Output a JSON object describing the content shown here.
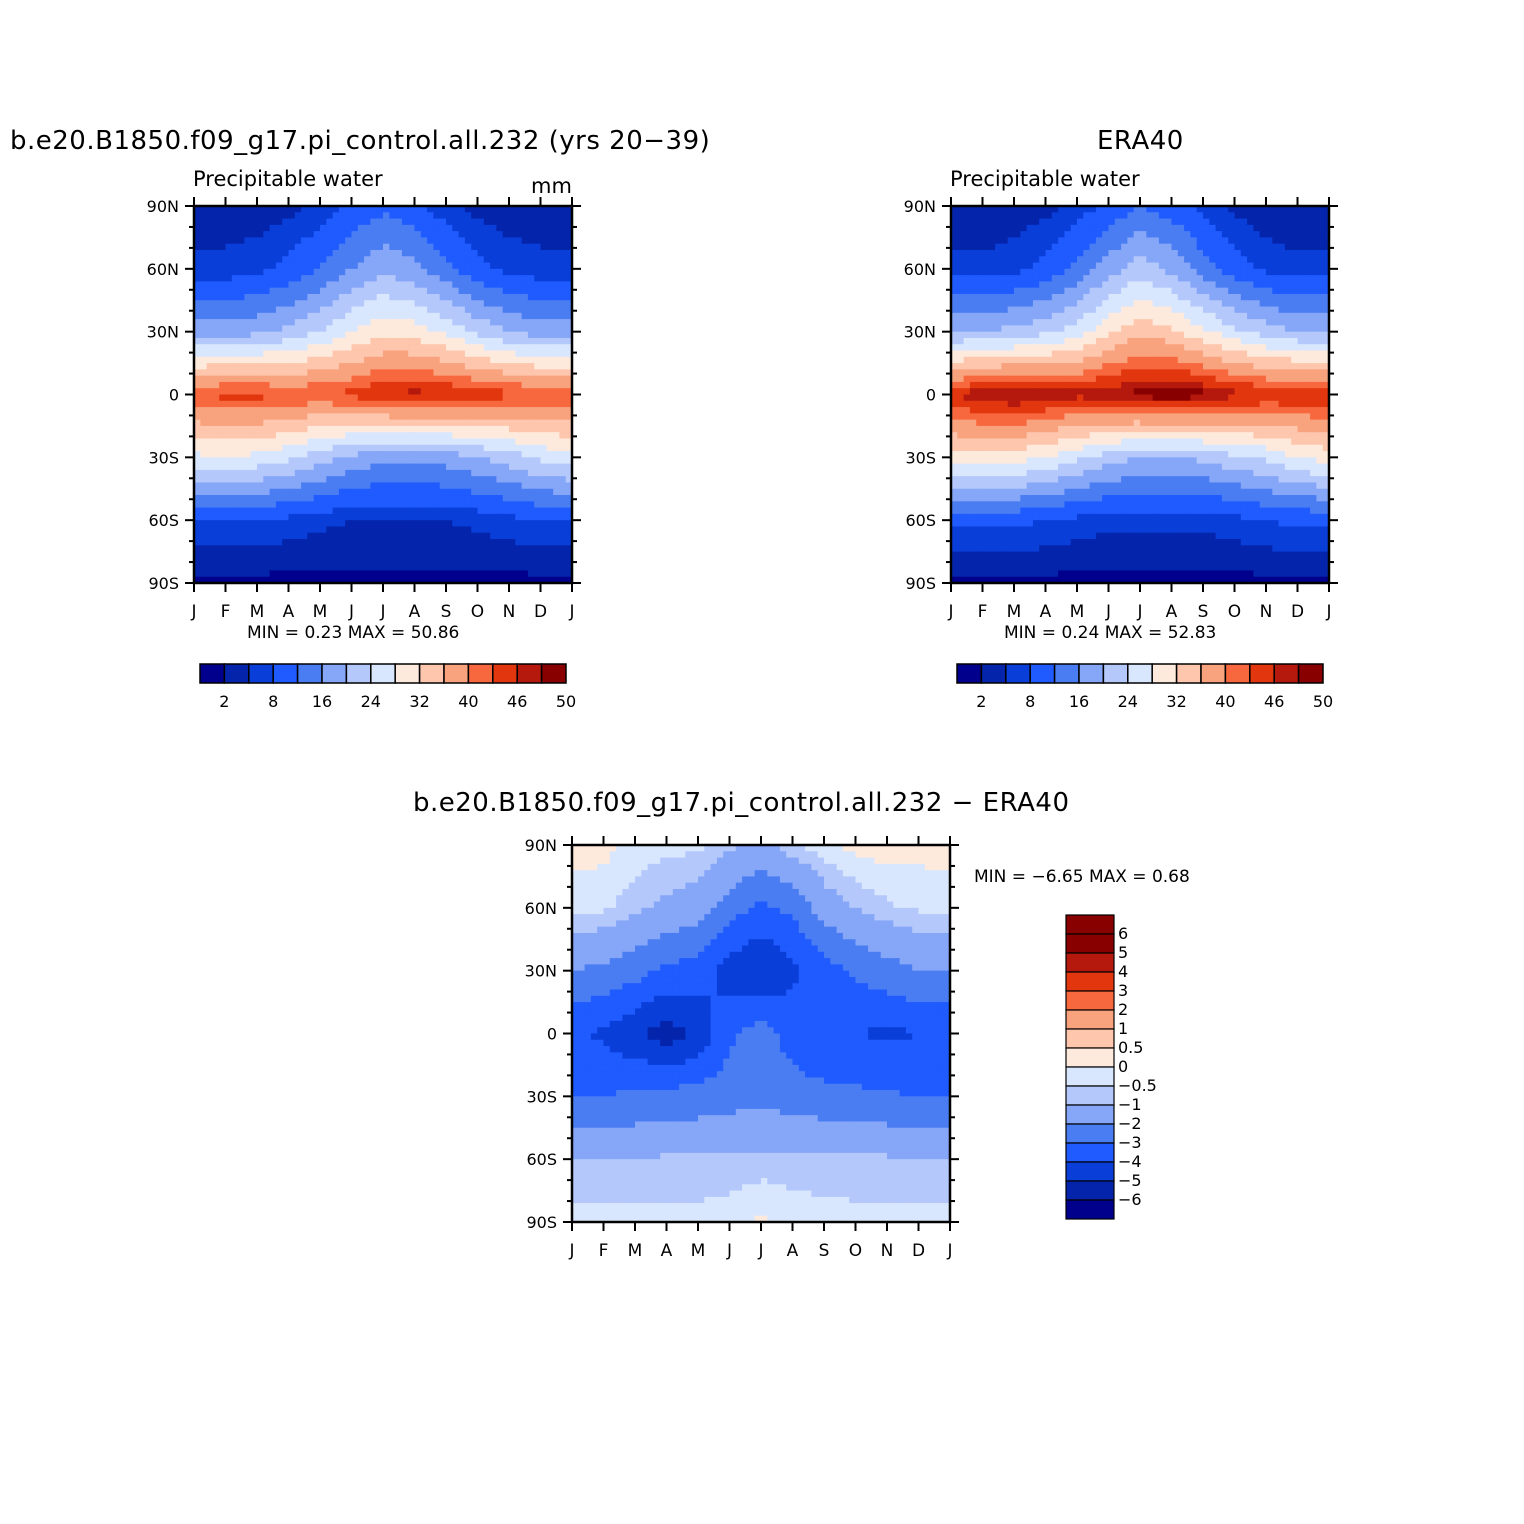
{
  "panels": [
    {
      "id": "model",
      "title": "b.e20.B1850.f09_g17.pi_control.all.232 (yrs 20−39)",
      "left_string": "Precipitable water",
      "right_string": "mm",
      "stats": "MIN =    0.23  MAX =    50.86",
      "colorbar_labels": [
        "2",
        "8",
        "16",
        "24",
        "32",
        "40",
        "46",
        "50"
      ]
    },
    {
      "id": "era40",
      "title": "ERA40",
      "left_string": "Precipitable water",
      "right_string": "",
      "stats": "MIN =    0.24  MAX =    52.83",
      "colorbar_labels": [
        "2",
        "8",
        "16",
        "24",
        "32",
        "40",
        "46",
        "50"
      ]
    },
    {
      "id": "diff",
      "title": "b.e20.B1850.f09_g17.pi_control.all.232 − ERA40",
      "left_string": "",
      "right_string": "",
      "stats": "MIN =   −6.65  MAX =     0.68",
      "colorbar_labels": [
        "6",
        "5",
        "4",
        "3",
        "2",
        "1",
        "0.5",
        "0",
        "−0.5",
        "−1",
        "−2",
        "−3",
        "−4",
        "−5",
        "−6"
      ]
    }
  ],
  "axes": {
    "lat_labels": [
      "90N",
      "60N",
      "30N",
      "0",
      "30S",
      "60S",
      "90S"
    ],
    "month_labels": [
      "J",
      "F",
      "M",
      "A",
      "M",
      "J",
      "J",
      "A",
      "S",
      "O",
      "N",
      "D",
      "J"
    ]
  },
  "colors": {
    "pw_levels": [
      "#00008c",
      "#0425ab",
      "#0a3ed9",
      "#1f5bff",
      "#4a7df2",
      "#86a6f8",
      "#b4c8fb",
      "#d9e7fe",
      "#feeadc",
      "#fdc6ad",
      "#f9a27e",
      "#f7683f",
      "#e2370e",
      "#b5190e",
      "#880000"
    ],
    "diff_levels": [
      "#00008c",
      "#0425ab",
      "#0a3ed9",
      "#1f5bff",
      "#4a7df2",
      "#86a6f8",
      "#b4c8fb",
      "#d9e7fe",
      "#feeadc",
      "#fdc6ad",
      "#f9a27e",
      "#f7683f",
      "#e2370e",
      "#b5190e",
      "#880000"
    ]
  },
  "chart_data": [
    {
      "type": "heatmap",
      "title": "b.e20.B1850.f09_g17.pi_control.all.232 (yrs 20−39)",
      "subtitle": "Precipitable water",
      "units": "mm",
      "x_axis": "month (J..J)",
      "y_axis": "latitude (90S..90N)",
      "contour_levels": [
        2,
        5,
        8,
        12,
        16,
        20,
        24,
        28,
        32,
        36,
        40,
        43,
        46,
        48,
        50
      ],
      "min": 0.23,
      "max": 50.86,
      "x": [
        "J",
        "F",
        "M",
        "A",
        "M",
        "J",
        "J",
        "A",
        "S",
        "O",
        "N",
        "D",
        "J"
      ],
      "y": [
        90,
        60,
        30,
        0,
        -30,
        -60,
        -90
      ],
      "values": [
        [
          3,
          3,
          3,
          4,
          6,
          9,
          11,
          9,
          6,
          4,
          3,
          3,
          3
        ],
        [
          6,
          6,
          7,
          9,
          12,
          16,
          19,
          17,
          13,
          9,
          7,
          6,
          6
        ],
        [
          18,
          18,
          19,
          21,
          24,
          28,
          31,
          30,
          27,
          23,
          20,
          18,
          18
        ],
        [
          43,
          44,
          44,
          43,
          43,
          44,
          46,
          47,
          46,
          45,
          44,
          43,
          43
        ],
        [
          27,
          28,
          27,
          25,
          22,
          19,
          17,
          17,
          18,
          20,
          22,
          25,
          27
        ],
        [
          8,
          8,
          8,
          7,
          6,
          5,
          5,
          5,
          5,
          6,
          7,
          8,
          8
        ],
        [
          1,
          1,
          1,
          1,
          1,
          1,
          1,
          1,
          1,
          1,
          1,
          1,
          1
        ]
      ]
    },
    {
      "type": "heatmap",
      "title": "ERA40",
      "subtitle": "Precipitable water",
      "contour_levels": [
        2,
        5,
        8,
        12,
        16,
        20,
        24,
        28,
        32,
        36,
        40,
        43,
        46,
        48,
        50
      ],
      "min": 0.24,
      "max": 52.83,
      "x": [
        "J",
        "F",
        "M",
        "A",
        "M",
        "J",
        "J",
        "A",
        "S",
        "O",
        "N",
        "D",
        "J"
      ],
      "y": [
        90,
        60,
        30,
        0,
        -30,
        -60,
        -90
      ],
      "values": [
        [
          2,
          2,
          3,
          4,
          6,
          9,
          12,
          10,
          7,
          4,
          3,
          2,
          2
        ],
        [
          6,
          6,
          7,
          9,
          13,
          18,
          22,
          19,
          14,
          10,
          7,
          6,
          6
        ],
        [
          20,
          20,
          21,
          23,
          26,
          31,
          35,
          33,
          29,
          25,
          22,
          20,
          20
        ],
        [
          46,
          48,
          49,
          48,
          47,
          48,
          49,
          50,
          49,
          47,
          46,
          46,
          46
        ],
        [
          30,
          31,
          30,
          28,
          25,
          22,
          20,
          20,
          21,
          23,
          25,
          28,
          30
        ],
        [
          9,
          9,
          9,
          8,
          7,
          6,
          6,
          6,
          6,
          7,
          8,
          9,
          9
        ],
        [
          1,
          1,
          1,
          1,
          1,
          1,
          1,
          1,
          1,
          1,
          1,
          1,
          1
        ]
      ]
    },
    {
      "type": "heatmap",
      "title": "b.e20.B1850.f09_g17.pi_control.all.232 − ERA40",
      "contour_levels": [
        -6,
        -5,
        -4,
        -3,
        -2,
        -1,
        -0.5,
        0,
        0.5,
        1,
        2,
        3,
        4,
        5,
        6
      ],
      "min": -6.65,
      "max": 0.68,
      "x": [
        "J",
        "F",
        "M",
        "A",
        "M",
        "J",
        "J",
        "A",
        "S",
        "O",
        "N",
        "D",
        "J"
      ],
      "y": [
        90,
        60,
        30,
        0,
        -30,
        -60,
        -90
      ],
      "values": [
        [
          0.2,
          0.2,
          -0.2,
          -0.3,
          -0.4,
          -0.8,
          -1.2,
          -0.6,
          -0.2,
          0.2,
          0.3,
          0.2,
          0.2
        ],
        [
          -0.3,
          -0.4,
          -0.8,
          -1.2,
          -1.5,
          -2.5,
          -3.2,
          -2.8,
          -1.5,
          -1.0,
          -0.6,
          -0.4,
          -0.3
        ],
        [
          -2.0,
          -2.2,
          -2.6,
          -3.2,
          -3.5,
          -4.5,
          -5.0,
          -4.2,
          -3.5,
          -2.8,
          -2.4,
          -2.0,
          -2.0
        ],
        [
          -3.8,
          -4.2,
          -4.8,
          -5.5,
          -4.8,
          -3.2,
          -2.5,
          -3.5,
          -4.0,
          -4.0,
          -4.2,
          -4.0,
          -3.8
        ],
        [
          -3.0,
          -3.0,
          -2.8,
          -2.6,
          -2.6,
          -2.4,
          -2.3,
          -2.5,
          -2.7,
          -2.8,
          -2.9,
          -3.0,
          -3.0
        ],
        [
          -1.0,
          -1.0,
          -1.0,
          -0.9,
          -0.9,
          -0.9,
          -0.8,
          -0.8,
          -0.8,
          -0.9,
          -0.9,
          -1.0,
          -1.0
        ],
        [
          -0.3,
          -0.3,
          -0.3,
          -0.3,
          -0.3,
          -0.2,
          0.1,
          -0.2,
          -0.3,
          -0.3,
          -0.3,
          -0.3,
          -0.3
        ]
      ]
    }
  ]
}
